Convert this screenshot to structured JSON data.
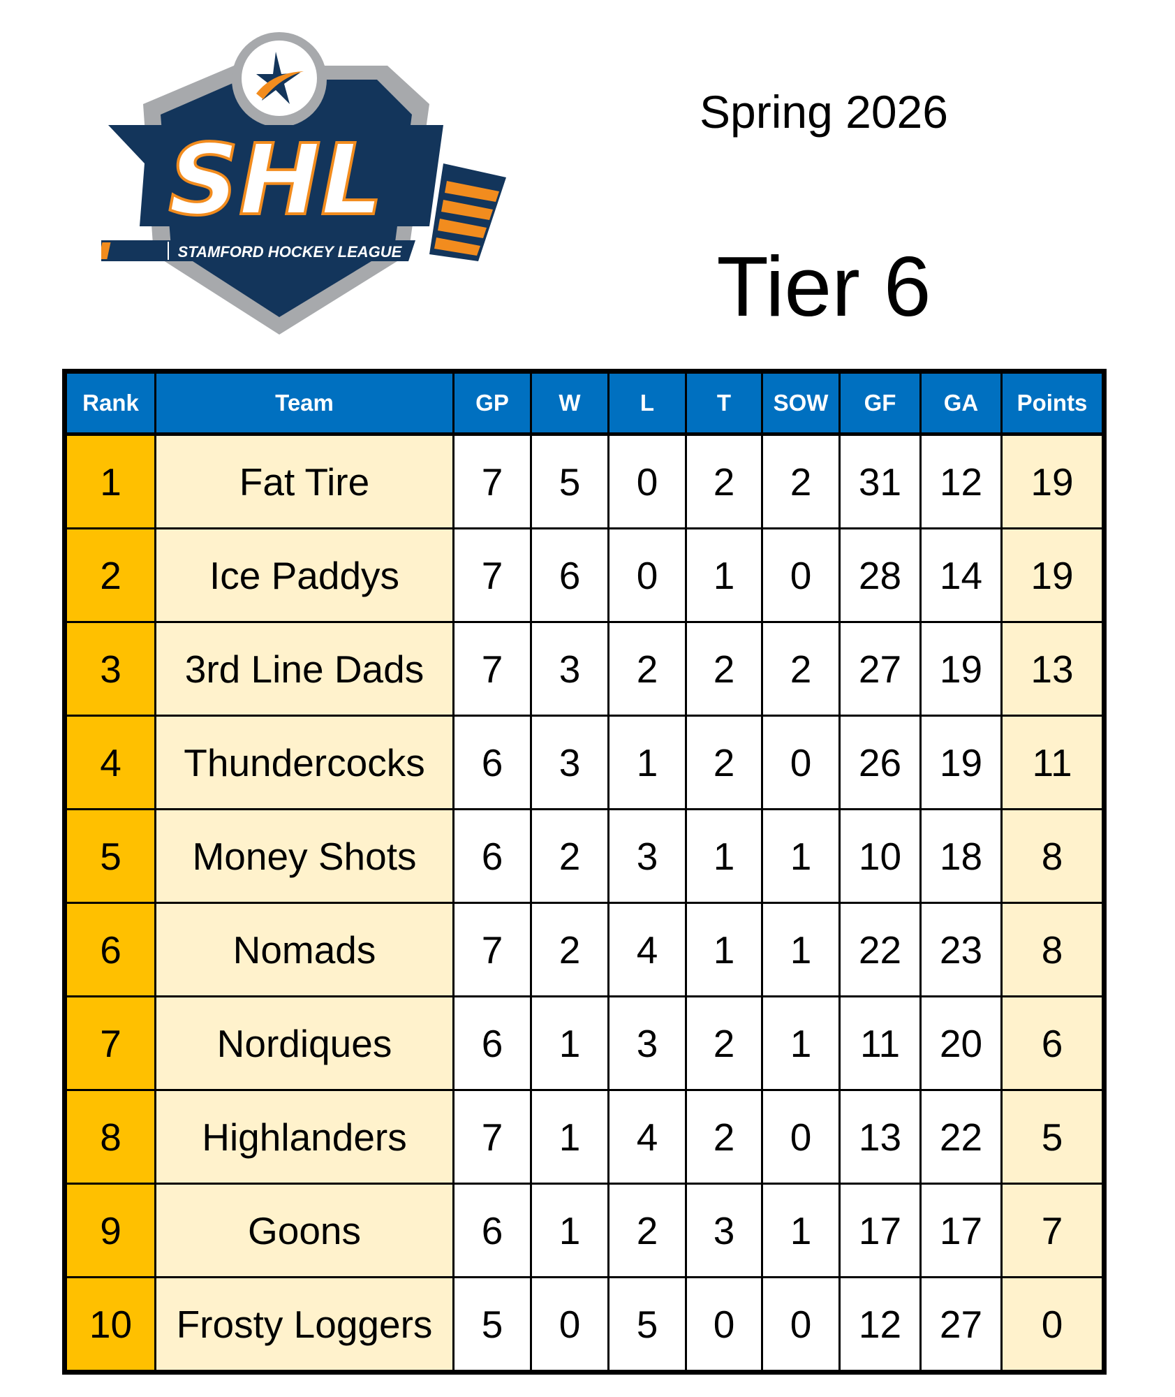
{
  "logo": {
    "name": "SHL",
    "subtitle": "STAMFORD HOCKEY LEAGUE"
  },
  "season": "Spring 2026",
  "tier": "Tier 6",
  "colors": {
    "header": "#0070C0",
    "rank": "#FFC000",
    "highlight": "#FFF2CC",
    "logo_navy": "#13355B",
    "logo_orange": "#F28C1E"
  },
  "table": {
    "columns": [
      "Rank",
      "Team",
      "GP",
      "W",
      "L",
      "T",
      "SOW",
      "GF",
      "GA",
      "Points"
    ],
    "rows": [
      [
        "1",
        "Fat Tire",
        "7",
        "5",
        "0",
        "2",
        "2",
        "31",
        "12",
        "19"
      ],
      [
        "2",
        "Ice Paddys",
        "7",
        "6",
        "0",
        "1",
        "0",
        "28",
        "14",
        "19"
      ],
      [
        "3",
        "3rd Line Dads",
        "7",
        "3",
        "2",
        "2",
        "2",
        "27",
        "19",
        "13"
      ],
      [
        "4",
        "Thundercocks",
        "6",
        "3",
        "1",
        "2",
        "0",
        "26",
        "19",
        "11"
      ],
      [
        "5",
        "Money Shots",
        "6",
        "2",
        "3",
        "1",
        "1",
        "10",
        "18",
        "8"
      ],
      [
        "6",
        "Nomads",
        "7",
        "2",
        "4",
        "1",
        "1",
        "22",
        "23",
        "8"
      ],
      [
        "7",
        "Nordiques",
        "6",
        "1",
        "3",
        "2",
        "1",
        "11",
        "20",
        "6"
      ],
      [
        "8",
        "Highlanders",
        "7",
        "1",
        "4",
        "2",
        "0",
        "13",
        "22",
        "5"
      ],
      [
        "9",
        "Goons",
        "6",
        "1",
        "2",
        "3",
        "1",
        "17",
        "17",
        "7"
      ],
      [
        "10",
        "Frosty Loggers",
        "5",
        "0",
        "5",
        "0",
        "0",
        "12",
        "27",
        "0"
      ]
    ]
  }
}
